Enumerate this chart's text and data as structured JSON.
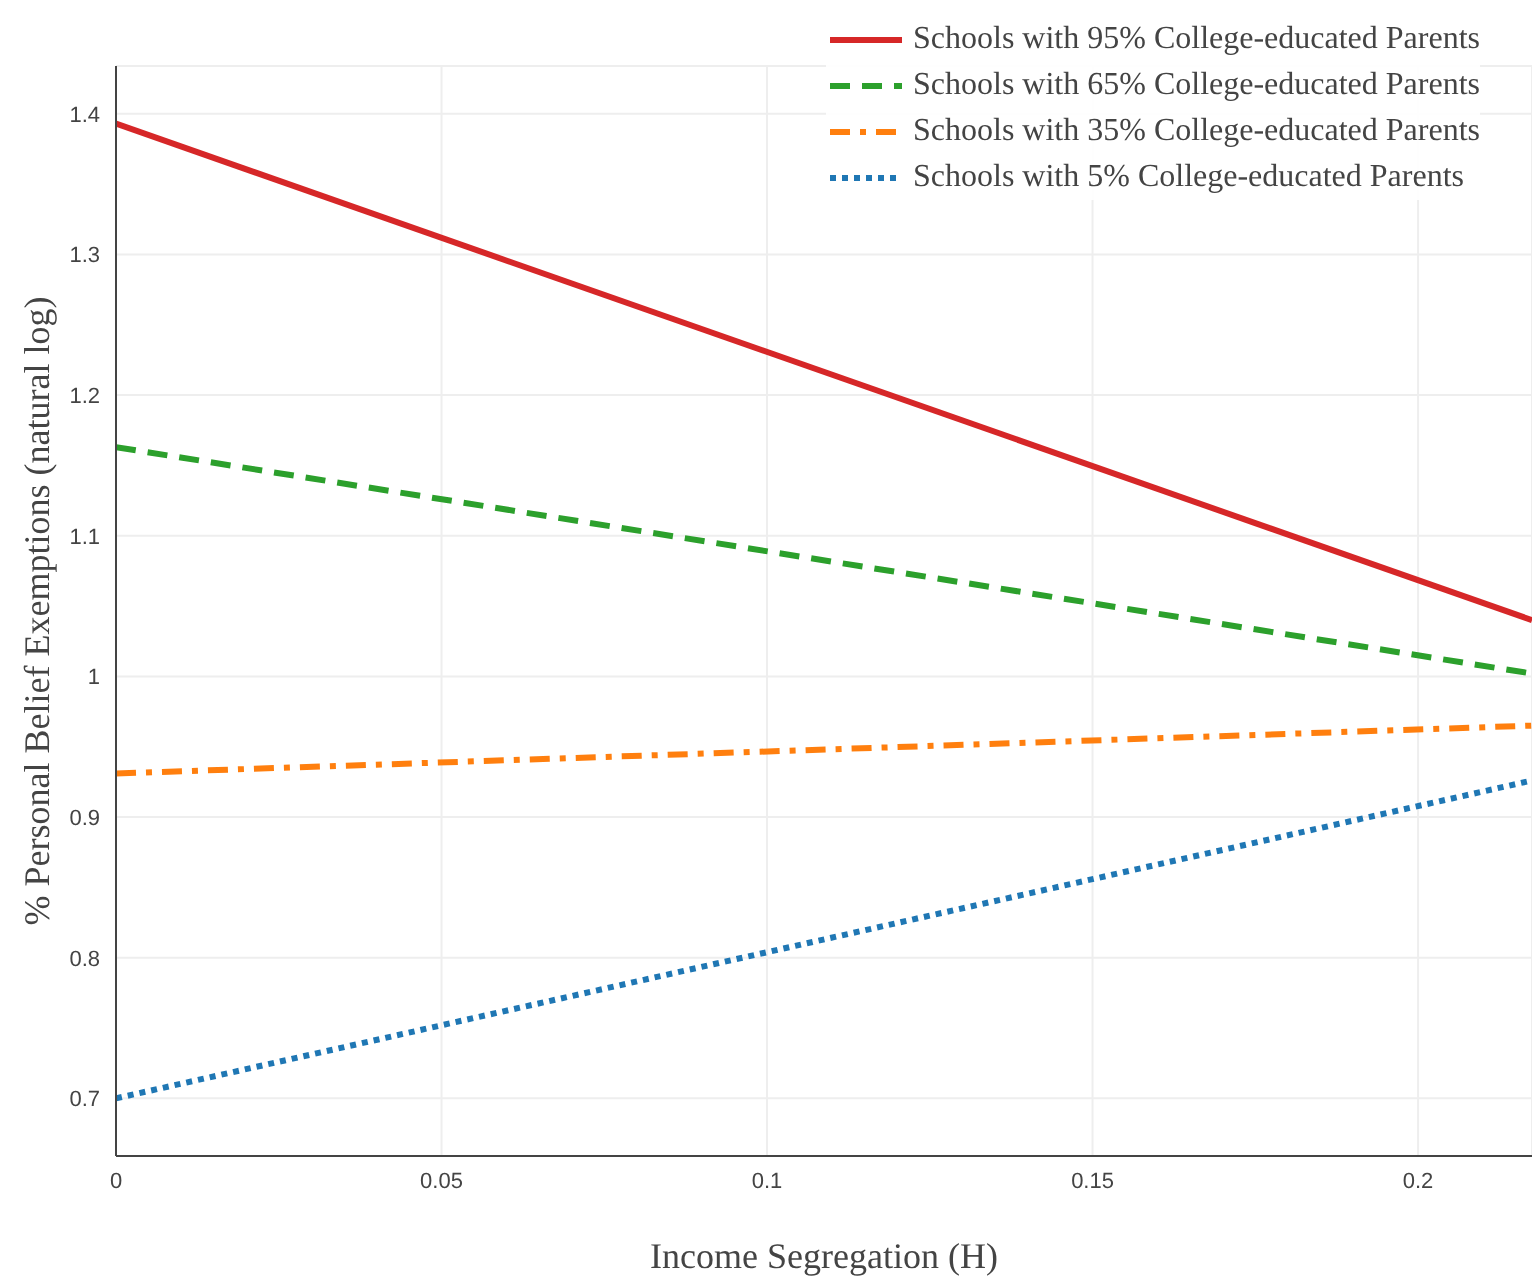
{
  "chart_data": {
    "type": "line",
    "xlabel": "Income Segregation (H)",
    "ylabel": "% Personal Belief Exemptions (natural log)",
    "x": [
      0,
      0.2175
    ],
    "xlim": [
      0,
      0.2175
    ],
    "xticks": [
      0,
      0.05,
      0.1,
      0.15,
      0.2
    ],
    "ylim": [
      0.659,
      1.434
    ],
    "yticks": [
      0.7,
      0.8,
      0.9,
      {
        "value": 1,
        "label": "1"
      },
      1.1,
      1.2,
      1.3,
      1.4
    ],
    "grid": true,
    "legend": "top right",
    "marker": "none",
    "series": [
      {
        "name": "Schools with 95% College-educated Parents",
        "color": "#d62728",
        "line_style": "solid",
        "values": [
          1.393,
          1.04
        ]
      },
      {
        "name": "Schools with 65% College-educated Parents",
        "color": "#2ca02c",
        "line_style": "dashed",
        "values": [
          1.163,
          1.002
        ]
      },
      {
        "name": "Schools with 35% College-educated Parents",
        "color": "#ff7f0e",
        "line_style": "dashdot",
        "values": [
          0.931,
          0.965
        ]
      },
      {
        "name": "Schools with 5% College-educated Parents",
        "color": "#1f77b4",
        "line_style": "dotted",
        "values": [
          0.7,
          0.926
        ]
      }
    ]
  }
}
